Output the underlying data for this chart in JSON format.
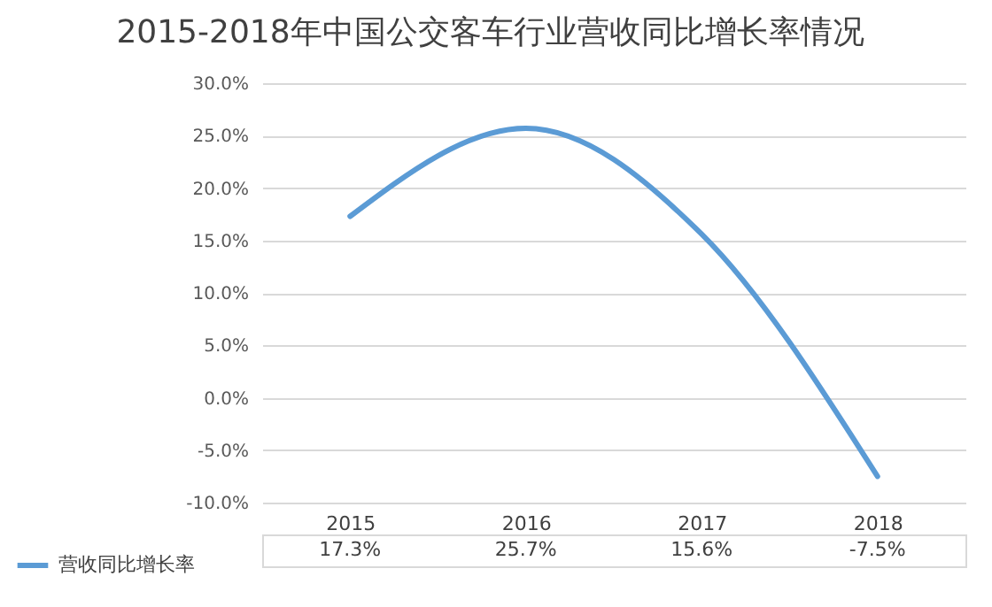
{
  "chart_data": {
    "type": "line",
    "title": "2015-2018年中国公交客车行业营收同比增长率情况",
    "categories": [
      "2015",
      "2016",
      "2017",
      "2018"
    ],
    "series": [
      {
        "name": "营收同比增长率",
        "color": "#5b9bd5",
        "values": [
          17.3,
          25.7,
          15.6,
          -7.5
        ],
        "value_labels": [
          "17.3%",
          "25.7%",
          "15.6%",
          "-7.5%"
        ]
      }
    ],
    "ylim": [
      -10,
      30
    ],
    "yticks": [
      {
        "value": -10,
        "label": "-10.0%"
      },
      {
        "value": -5,
        "label": "-5.0%"
      },
      {
        "value": 0,
        "label": "0.0%"
      },
      {
        "value": 5,
        "label": "5.0%"
      },
      {
        "value": 10,
        "label": "10.0%"
      },
      {
        "value": 15,
        "label": "15.0%"
      },
      {
        "value": 20,
        "label": "20.0%"
      },
      {
        "value": 25,
        "label": "25.0%"
      },
      {
        "value": 30,
        "label": "30.0%"
      }
    ],
    "grid": "y",
    "legend": "bottom left"
  }
}
